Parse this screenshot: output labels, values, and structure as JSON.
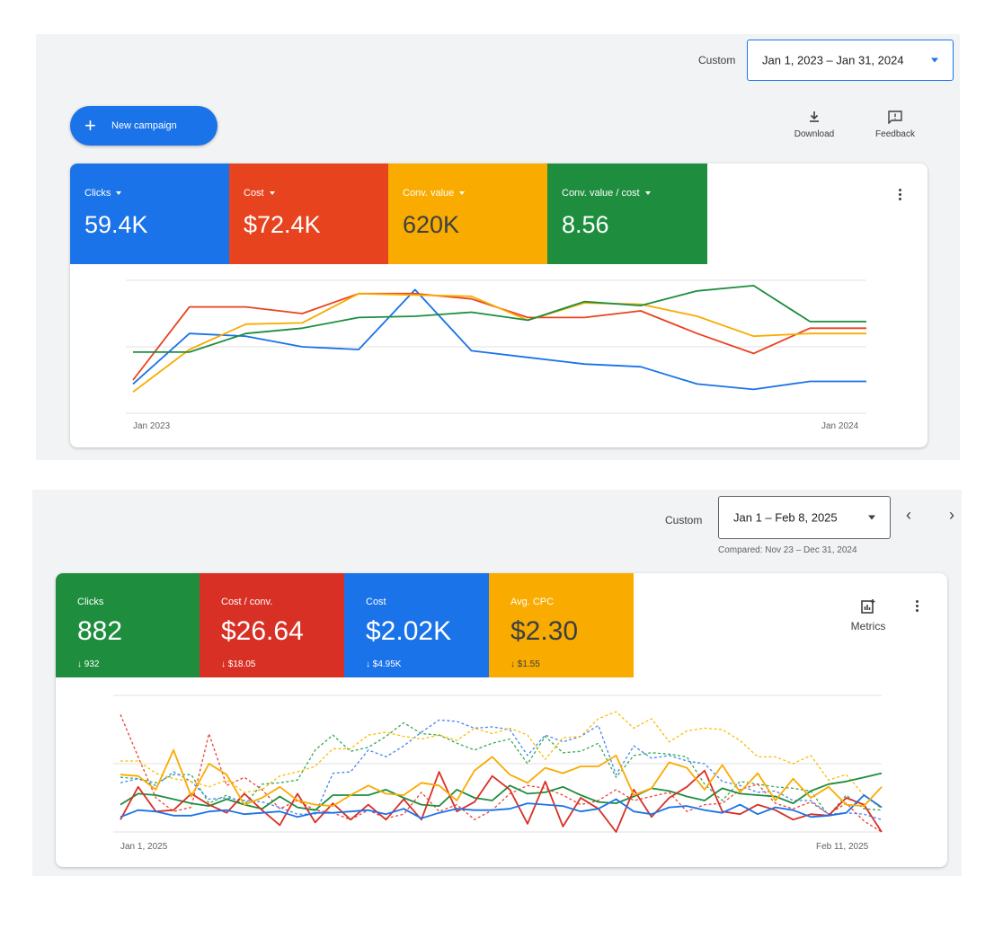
{
  "panel1": {
    "date_label": "Custom",
    "date_range": "Jan 1, 2023 – Jan 31, 2024",
    "new_campaign_label": "New campaign",
    "download_label": "Download",
    "feedback_label": "Feedback",
    "metrics": [
      {
        "label": "Clicks",
        "value": "59.4K",
        "color": "#1a73e8"
      },
      {
        "label": "Cost",
        "value": "$72.4K",
        "color": "#e8431f"
      },
      {
        "label": "Conv. value",
        "value": "620K",
        "color": "#f9ab00"
      },
      {
        "label": "Conv. value / cost",
        "value": "8.56",
        "color": "#1e8e3e"
      }
    ],
    "x_start_label": "Jan 2023",
    "x_end_label": "Jan 2024"
  },
  "panel2": {
    "date_label": "Custom",
    "date_range": "Jan 1 – Feb 8, 2025",
    "compared_text": "Compared: Nov 23 – Dec 31, 2024",
    "metrics_button_label": "Metrics",
    "metrics": [
      {
        "label": "Clicks",
        "value": "882",
        "compare": "↓ 932",
        "color": "#1e8e3e"
      },
      {
        "label": "Cost / conv.",
        "value": "$26.64",
        "compare": "↓ $18.05",
        "color": "#d93025"
      },
      {
        "label": "Cost",
        "value": "$2.02K",
        "compare": "↓ $4.95K",
        "color": "#1a73e8"
      },
      {
        "label": "Avg. CPC",
        "value": "$2.30",
        "compare": "↓ $1.55",
        "color": "#f9ab00"
      }
    ],
    "x_start_label": "Jan 1, 2025",
    "x_end_label": "Feb 11, 2025"
  },
  "chart_data": [
    {
      "type": "line",
      "x": [
        1,
        2,
        3,
        4,
        5,
        6,
        7,
        8,
        9,
        10,
        11,
        12,
        13,
        14
      ],
      "ylim": [
        0,
        100
      ],
      "series": [
        {
          "name": "Clicks",
          "color": "#1a73e8",
          "values": [
            22,
            60,
            58,
            50,
            48,
            93,
            47,
            42,
            37,
            35,
            22,
            18,
            24,
            24
          ]
        },
        {
          "name": "Cost",
          "color": "#e8431f",
          "values": [
            25,
            80,
            80,
            75,
            90,
            90,
            86,
            72,
            72,
            77,
            60,
            45,
            64,
            64
          ]
        },
        {
          "name": "Conv. value",
          "color": "#f9ab00",
          "values": [
            16,
            48,
            67,
            68,
            90,
            89,
            88,
            70,
            83,
            82,
            73,
            58,
            60,
            60
          ]
        },
        {
          "name": "Conv. value / cost",
          "color": "#1e8e3e",
          "values": [
            46,
            46,
            60,
            64,
            72,
            73,
            76,
            70,
            84,
            81,
            92,
            96,
            69,
            69
          ]
        }
      ]
    },
    {
      "type": "line",
      "ylim": [
        0,
        100
      ],
      "series": [
        {
          "name": "Clicks",
          "color": "#1e8e3e",
          "values": [
            20,
            28,
            27,
            24,
            21,
            19,
            24,
            20,
            17,
            26,
            18,
            16,
            27,
            27,
            27,
            31,
            25,
            20,
            19,
            31,
            25,
            23,
            34,
            28,
            29,
            33,
            27,
            22,
            21,
            26,
            32,
            30,
            26,
            23,
            32,
            28,
            27,
            26,
            21,
            30,
            35,
            37,
            40,
            43
          ]
        },
        {
          "name": "Cost / conv.",
          "color": "#d93025",
          "values": [
            9,
            33,
            15,
            16,
            28,
            20,
            14,
            28,
            16,
            5,
            28,
            7,
            21,
            9,
            20,
            9,
            24,
            9,
            44,
            15,
            22,
            41,
            31,
            6,
            37,
            4,
            25,
            17,
            0,
            31,
            11,
            25,
            33,
            45,
            15,
            13,
            20,
            16,
            9,
            13,
            12,
            25,
            20,
            0
          ]
        },
        {
          "name": "Cost",
          "color": "#1a73e8",
          "values": [
            11,
            16,
            15,
            12,
            12,
            15,
            16,
            13,
            14,
            15,
            11,
            14,
            14,
            15,
            16,
            13,
            17,
            10,
            14,
            17,
            16,
            16,
            17,
            21,
            20,
            19,
            15,
            17,
            24,
            15,
            13,
            18,
            19,
            16,
            14,
            20,
            13,
            18,
            16,
            11,
            12,
            14,
            27,
            18
          ]
        },
        {
          "name": "Avg. CPC",
          "color": "#f9ab00",
          "values": [
            42,
            41,
            31,
            60,
            26,
            50,
            42,
            20,
            25,
            33,
            23,
            20,
            19,
            27,
            34,
            28,
            27,
            36,
            34,
            23,
            45,
            55,
            42,
            36,
            47,
            43,
            48,
            48,
            56,
            27,
            32,
            51,
            47,
            31,
            49,
            29,
            43,
            23,
            39,
            25,
            33,
            20,
            19,
            33
          ]
        },
        {
          "name": "Clicks (previous)",
          "color": "#34a853",
          "dashed": true,
          "values": [
            40,
            39,
            36,
            42,
            42,
            21,
            27,
            20,
            35,
            36,
            38,
            60,
            71,
            59,
            62,
            70,
            80,
            72,
            71,
            65,
            60,
            65,
            68,
            50,
            70,
            58,
            59,
            65,
            40,
            56,
            58,
            57,
            55,
            35,
            23,
            37,
            35,
            33,
            32,
            30,
            12,
            27,
            17,
            16
          ]
        },
        {
          "name": "Cost / conv. (previous)",
          "color": "#ea4335",
          "dashed": true,
          "values": [
            86,
            55,
            25,
            15,
            18,
            72,
            34,
            40,
            31,
            17,
            23,
            16,
            14,
            9,
            16,
            10,
            13,
            29,
            15,
            20,
            9,
            16,
            28,
            34,
            32,
            27,
            20,
            23,
            31,
            23,
            26,
            29,
            15,
            20,
            21,
            31,
            35,
            21,
            17,
            22,
            13,
            21,
            8,
            0
          ]
        },
        {
          "name": "Cost (previous)",
          "color": "#4285f4",
          "dashed": true,
          "values": [
            36,
            39,
            34,
            44,
            37,
            24,
            25,
            23,
            22,
            18,
            13,
            13,
            43,
            44,
            60,
            55,
            63,
            73,
            82,
            81,
            76,
            77,
            75,
            56,
            71,
            66,
            70,
            78,
            42,
            63,
            54,
            56,
            52,
            50,
            37,
            34,
            29,
            30,
            23,
            23,
            13,
            14,
            13,
            9
          ]
        },
        {
          "name": "Avg. CPC (previous)",
          "color": "#fbbc04",
          "dashed": true,
          "values": [
            52,
            52,
            43,
            39,
            37,
            33,
            38,
            29,
            31,
            41,
            44,
            48,
            61,
            61,
            71,
            73,
            70,
            68,
            71,
            67,
            76,
            72,
            76,
            71,
            53,
            69,
            70,
            83,
            88,
            76,
            83,
            66,
            74,
            76,
            75,
            67,
            55,
            55,
            50,
            56,
            38,
            42,
            27,
            17
          ]
        }
      ]
    }
  ]
}
